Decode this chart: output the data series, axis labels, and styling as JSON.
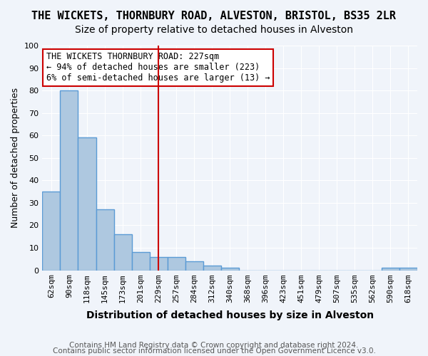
{
  "title1": "THE WICKETS, THORNBURY ROAD, ALVESTON, BRISTOL, BS35 2LR",
  "title2": "Size of property relative to detached houses in Alveston",
  "xlabel": "Distribution of detached houses by size in Alveston",
  "ylabel": "Number of detached properties",
  "footnote1": "Contains HM Land Registry data © Crown copyright and database right 2024.",
  "footnote2": "Contains public sector information licensed under the Open Government Licence v3.0.",
  "annotation_line1": "THE WICKETS THORNBURY ROAD: 227sqm",
  "annotation_line2": "← 94% of detached houses are smaller (223)",
  "annotation_line3": "6% of semi-detached houses are larger (13) →",
  "bar_labels": [
    "62sqm",
    "90sqm",
    "118sqm",
    "145sqm",
    "173sqm",
    "201sqm",
    "229sqm",
    "257sqm",
    "284sqm",
    "312sqm",
    "340sqm",
    "368sqm",
    "396sqm",
    "423sqm",
    "451sqm",
    "479sqm",
    "507sqm",
    "535sqm",
    "562sqm",
    "590sqm",
    "618sqm"
  ],
  "bar_values": [
    35,
    80,
    59,
    27,
    16,
    8,
    6,
    6,
    4,
    2,
    1,
    0,
    0,
    0,
    0,
    0,
    0,
    0,
    0,
    1,
    1
  ],
  "bar_color": "#aec8e0",
  "bar_edge_color": "#5b9bd5",
  "bar_linewidth": 1.0,
  "vline_x_index": 6,
  "vline_color": "#cc0000",
  "vline_linewidth": 1.5,
  "ylim": [
    0,
    100
  ],
  "yticks": [
    0,
    10,
    20,
    30,
    40,
    50,
    60,
    70,
    80,
    90,
    100
  ],
  "annotation_box_color": "#ffffff",
  "annotation_box_edge": "#cc0000",
  "background_color": "#f0f4fa",
  "grid_color": "#ffffff",
  "title1_fontsize": 11,
  "title2_fontsize": 10,
  "xlabel_fontsize": 10,
  "ylabel_fontsize": 9,
  "footnote_fontsize": 7.5,
  "annotation_fontsize": 8.5,
  "tick_fontsize": 8
}
